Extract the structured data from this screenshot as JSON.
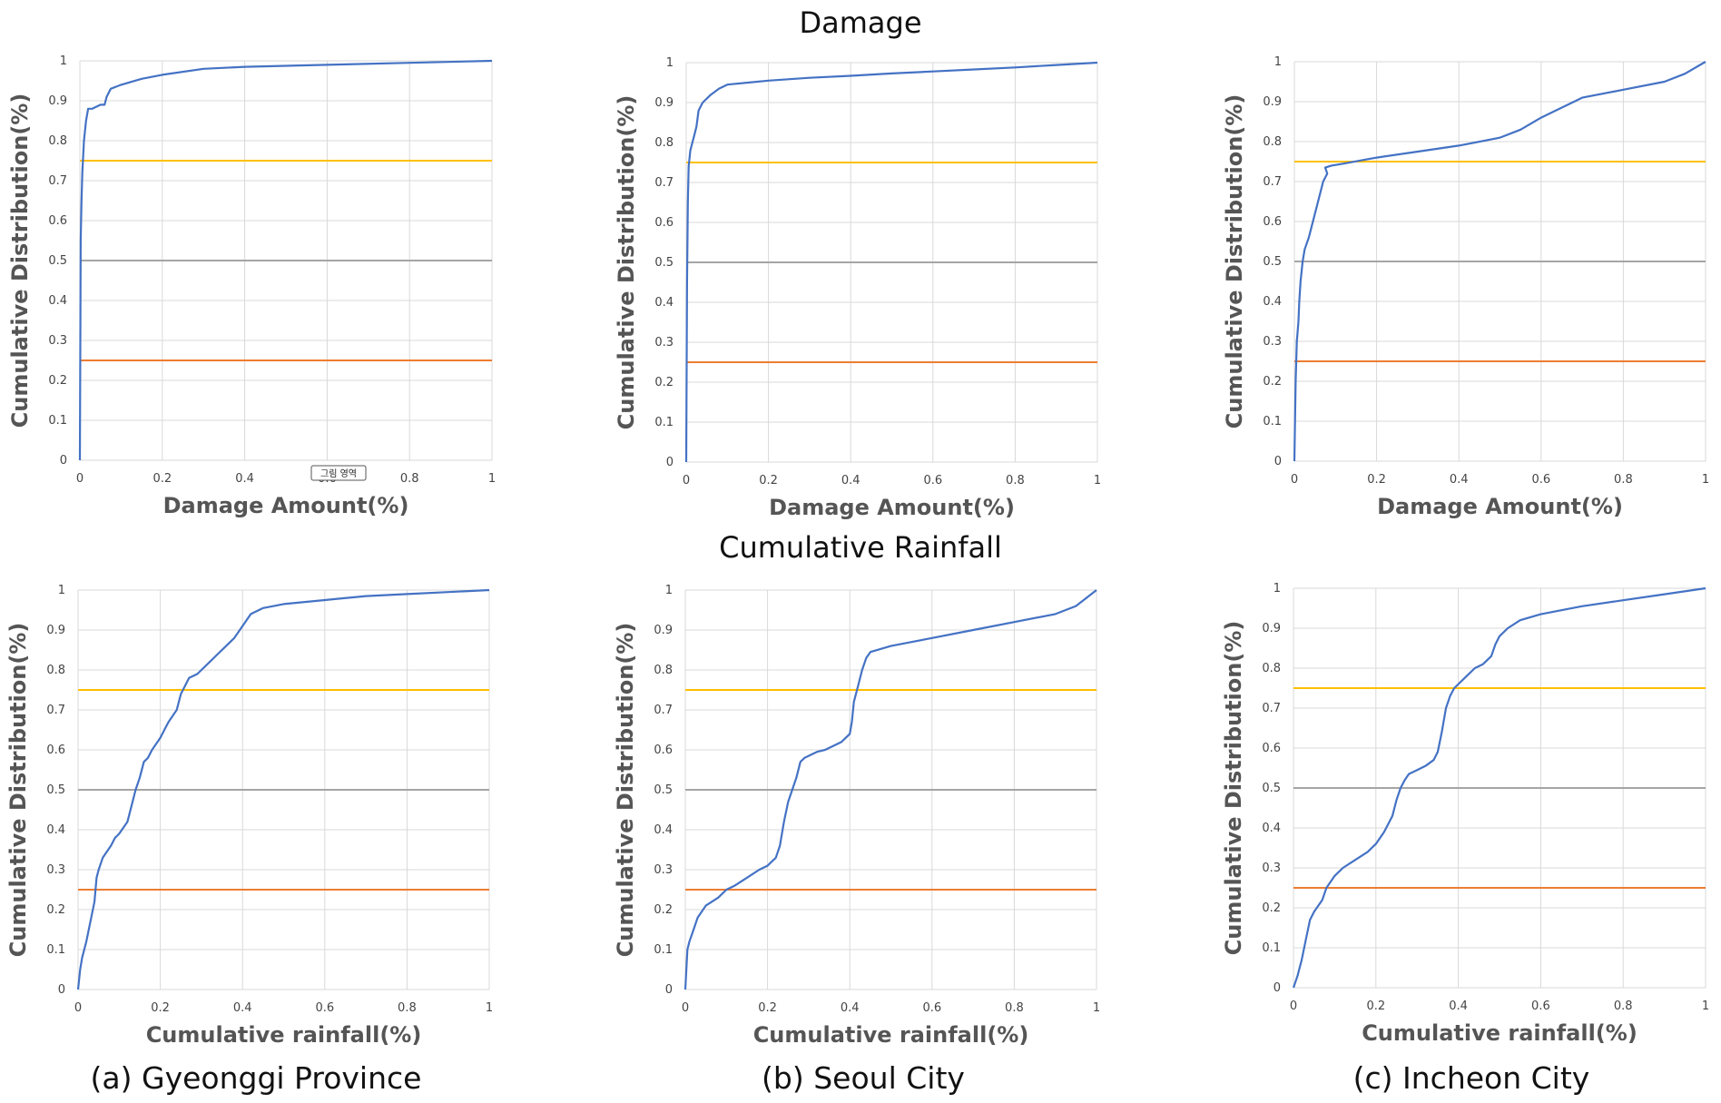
{
  "titles": {
    "top": "Damage",
    "middle": "Cumulative Rainfall"
  },
  "captions": [
    "(a) Gyeonggi Province",
    "(b) Seoul City",
    "(c) Incheon City"
  ],
  "small_tag": "그림 영역",
  "colors": {
    "cdf": "#4472c4",
    "q75": "#ffc000",
    "q50": "#a5a5a5",
    "q25": "#ed7d31",
    "grid": "#d9d9d9"
  },
  "chart_data": [
    {
      "type": "line",
      "region": "Gyeonggi Province",
      "variable": "Damage",
      "xlabel": "Damage Amount(%)",
      "ylabel": "Cumulative Distribution(%)",
      "xlim": [
        0,
        1
      ],
      "ylim": [
        0,
        1
      ],
      "xticks": [
        "0",
        "0.2",
        "0.4",
        "0.6",
        "0.8",
        "1"
      ],
      "yticks": [
        "0",
        "0.1",
        "0.2",
        "0.3",
        "0.4",
        "0.5",
        "0.6",
        "0.7",
        "0.8",
        "0.9",
        "1"
      ],
      "reference_lines": [
        0.75,
        0.5,
        0.25
      ],
      "series": [
        {
          "name": "CDF",
          "x": [
            0,
            0.001,
            0.002,
            0.004,
            0.006,
            0.01,
            0.015,
            0.02,
            0.03,
            0.05,
            0.06,
            0.065,
            0.075,
            0.1,
            0.15,
            0.2,
            0.3,
            0.4,
            0.6,
            0.8,
            1.0
          ],
          "y": [
            0,
            0.3,
            0.55,
            0.65,
            0.72,
            0.8,
            0.85,
            0.88,
            0.88,
            0.89,
            0.89,
            0.91,
            0.93,
            0.94,
            0.955,
            0.965,
            0.98,
            0.985,
            0.99,
            0.995,
            1.0
          ]
        }
      ]
    },
    {
      "type": "line",
      "region": "Seoul City",
      "variable": "Damage",
      "xlabel": "Damage Amount(%)",
      "ylabel": "Cumulative Distribution(%)",
      "xlim": [
        0,
        1
      ],
      "ylim": [
        0,
        1
      ],
      "xticks": [
        "0",
        "0.2",
        "0.4",
        "0.6",
        "0.8",
        "1"
      ],
      "yticks": [
        "0",
        "0.1",
        "0.2",
        "0.3",
        "0.4",
        "0.5",
        "0.6",
        "0.7",
        "0.8",
        "0.9",
        "1"
      ],
      "reference_lines": [
        0.75,
        0.5,
        0.25
      ],
      "series": [
        {
          "name": "CDF",
          "x": [
            0,
            0.002,
            0.004,
            0.006,
            0.01,
            0.015,
            0.02,
            0.025,
            0.03,
            0.04,
            0.06,
            0.08,
            0.1,
            0.15,
            0.2,
            0.3,
            0.4,
            0.5,
            0.6,
            0.7,
            0.8,
            0.9,
            1.0
          ],
          "y": [
            0,
            0.45,
            0.65,
            0.74,
            0.78,
            0.8,
            0.82,
            0.84,
            0.88,
            0.9,
            0.92,
            0.935,
            0.945,
            0.95,
            0.955,
            0.962,
            0.967,
            0.973,
            0.978,
            0.983,
            0.988,
            0.994,
            1.0
          ]
        }
      ]
    },
    {
      "type": "line",
      "region": "Incheon City",
      "variable": "Damage",
      "xlabel": "Damage Amount(%)",
      "ylabel": "Cumulative Distribution(%)",
      "xlim": [
        0,
        1
      ],
      "ylim": [
        0,
        1
      ],
      "xticks": [
        "0",
        "0.2",
        "0.4",
        "0.6",
        "0.8",
        "1"
      ],
      "yticks": [
        "0",
        "0.1",
        "0.2",
        "0.3",
        "0.4",
        "0.5",
        "0.6",
        "0.7",
        "0.8",
        "0.9",
        "1"
      ],
      "reference_lines": [
        0.75,
        0.5,
        0.25
      ],
      "series": [
        {
          "name": "CDF",
          "x": [
            0,
            0.003,
            0.006,
            0.01,
            0.012,
            0.015,
            0.02,
            0.025,
            0.035,
            0.05,
            0.06,
            0.07,
            0.08,
            0.075,
            0.09,
            0.12,
            0.2,
            0.3,
            0.4,
            0.5,
            0.55,
            0.6,
            0.7,
            0.8,
            0.9,
            0.95,
            1.0
          ],
          "y": [
            0,
            0.2,
            0.3,
            0.35,
            0.4,
            0.45,
            0.5,
            0.53,
            0.56,
            0.62,
            0.66,
            0.7,
            0.72,
            0.735,
            0.74,
            0.745,
            0.76,
            0.775,
            0.79,
            0.81,
            0.83,
            0.86,
            0.91,
            0.93,
            0.95,
            0.97,
            1.0
          ]
        }
      ]
    },
    {
      "type": "line",
      "region": "Gyeonggi Province",
      "variable": "Cumulative Rainfall",
      "xlabel": "Cumulative rainfall(%)",
      "ylabel": "Cumulative Distribution(%)",
      "xlim": [
        0,
        1
      ],
      "ylim": [
        0,
        1
      ],
      "xticks": [
        "0",
        "0.2",
        "0.4",
        "0.6",
        "0.8",
        "1"
      ],
      "yticks": [
        "0",
        "0.1",
        "0.2",
        "0.3",
        "0.4",
        "0.5",
        "0.6",
        "0.7",
        "0.8",
        "0.9",
        "1"
      ],
      "reference_lines": [
        0.75,
        0.5,
        0.25
      ],
      "series": [
        {
          "name": "CDF",
          "x": [
            0,
            0.005,
            0.01,
            0.02,
            0.03,
            0.04,
            0.045,
            0.05,
            0.06,
            0.08,
            0.09,
            0.1,
            0.12,
            0.13,
            0.14,
            0.15,
            0.16,
            0.17,
            0.18,
            0.2,
            0.21,
            0.22,
            0.24,
            0.25,
            0.26,
            0.27,
            0.29,
            0.3,
            0.32,
            0.34,
            0.36,
            0.38,
            0.4,
            0.42,
            0.45,
            0.5,
            0.6,
            0.7,
            0.8,
            0.9,
            1.0
          ],
          "y": [
            0,
            0.05,
            0.08,
            0.12,
            0.17,
            0.22,
            0.28,
            0.3,
            0.33,
            0.36,
            0.38,
            0.39,
            0.42,
            0.46,
            0.5,
            0.53,
            0.57,
            0.58,
            0.6,
            0.63,
            0.65,
            0.67,
            0.7,
            0.74,
            0.76,
            0.78,
            0.79,
            0.8,
            0.82,
            0.84,
            0.86,
            0.88,
            0.91,
            0.94,
            0.955,
            0.965,
            0.975,
            0.985,
            0.99,
            0.995,
            1.0
          ]
        }
      ]
    },
    {
      "type": "line",
      "region": "Seoul City",
      "variable": "Cumulative Rainfall",
      "xlabel": "Cumulative rainfall(%)",
      "ylabel": "Cumulative Distribution(%)",
      "xlim": [
        0,
        1
      ],
      "ylim": [
        0,
        1
      ],
      "xticks": [
        "0",
        "0.2",
        "0.4",
        "0.6",
        "0.8",
        "1"
      ],
      "yticks": [
        "0",
        "0.1",
        "0.2",
        "0.3",
        "0.4",
        "0.5",
        "0.6",
        "0.7",
        "0.8",
        "0.9",
        "1"
      ],
      "reference_lines": [
        0.75,
        0.5,
        0.25
      ],
      "series": [
        {
          "name": "CDF",
          "x": [
            0,
            0.005,
            0.01,
            0.02,
            0.03,
            0.05,
            0.08,
            0.1,
            0.12,
            0.15,
            0.18,
            0.2,
            0.22,
            0.23,
            0.24,
            0.25,
            0.26,
            0.27,
            0.28,
            0.29,
            0.3,
            0.32,
            0.34,
            0.36,
            0.38,
            0.4,
            0.405,
            0.41,
            0.42,
            0.43,
            0.44,
            0.45,
            0.5,
            0.55,
            0.6,
            0.7,
            0.8,
            0.9,
            0.95,
            1.0
          ],
          "y": [
            0,
            0.1,
            0.12,
            0.15,
            0.18,
            0.21,
            0.23,
            0.25,
            0.26,
            0.28,
            0.3,
            0.31,
            0.33,
            0.36,
            0.42,
            0.47,
            0.5,
            0.53,
            0.57,
            0.58,
            0.585,
            0.595,
            0.6,
            0.61,
            0.62,
            0.64,
            0.67,
            0.72,
            0.76,
            0.8,
            0.83,
            0.845,
            0.86,
            0.87,
            0.88,
            0.9,
            0.92,
            0.94,
            0.96,
            1.0
          ]
        }
      ]
    },
    {
      "type": "line",
      "region": "Incheon City",
      "variable": "Cumulative Rainfall",
      "xlabel": "Cumulative rainfall(%)",
      "ylabel": "Cumulative Distribution(%)",
      "xlim": [
        0,
        1
      ],
      "ylim": [
        0,
        1
      ],
      "xticks": [
        "0",
        "0.2",
        "0.4",
        "0.6",
        "0.8",
        "1"
      ],
      "yticks": [
        "0",
        "0.1",
        "0.2",
        "0.3",
        "0.4",
        "0.5",
        "0.6",
        "0.7",
        "0.8",
        "0.9",
        "1"
      ],
      "reference_lines": [
        0.75,
        0.5,
        0.25
      ],
      "series": [
        {
          "name": "CDF",
          "x": [
            0,
            0.01,
            0.02,
            0.03,
            0.04,
            0.05,
            0.07,
            0.08,
            0.1,
            0.12,
            0.15,
            0.18,
            0.2,
            0.22,
            0.24,
            0.25,
            0.26,
            0.27,
            0.28,
            0.3,
            0.32,
            0.34,
            0.35,
            0.36,
            0.37,
            0.38,
            0.39,
            0.4,
            0.42,
            0.44,
            0.46,
            0.48,
            0.49,
            0.5,
            0.52,
            0.55,
            0.6,
            0.65,
            0.7,
            0.8,
            0.9,
            1.0
          ],
          "y": [
            0,
            0.03,
            0.07,
            0.12,
            0.17,
            0.19,
            0.22,
            0.25,
            0.28,
            0.3,
            0.32,
            0.34,
            0.36,
            0.39,
            0.43,
            0.47,
            0.5,
            0.52,
            0.535,
            0.545,
            0.555,
            0.57,
            0.59,
            0.64,
            0.7,
            0.73,
            0.75,
            0.76,
            0.78,
            0.8,
            0.81,
            0.83,
            0.86,
            0.88,
            0.9,
            0.92,
            0.935,
            0.945,
            0.955,
            0.97,
            0.985,
            1.0
          ]
        }
      ]
    }
  ]
}
